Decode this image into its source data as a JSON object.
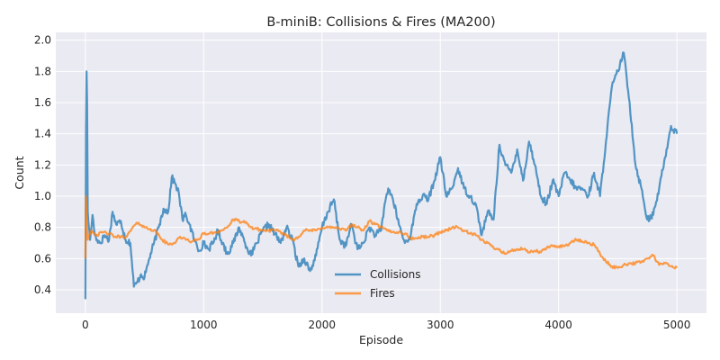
{
  "chart_data": {
    "type": "line",
    "title": "B-miniB: Collisions & Fires (MA200)",
    "xlabel": "Episode",
    "ylabel": "Count",
    "xlim": [
      -250,
      5250
    ],
    "ylim": [
      0.25,
      2.05
    ],
    "xticks": [
      0,
      1000,
      2000,
      3000,
      4000,
      5000
    ],
    "yticks": [
      0.4,
      0.6,
      0.8,
      1.0,
      1.2,
      1.4,
      1.6,
      1.8,
      2.0
    ],
    "ytick_labels": [
      "0.4",
      "0.6",
      "0.8",
      "1.0",
      "1.2",
      "1.4",
      "1.6",
      "1.8",
      "2.0"
    ],
    "grid": true,
    "legend_position": "lower-center",
    "series": [
      {
        "name": "Collisions",
        "color": "#1f77b4",
        "x": [
          0,
          5,
          10,
          15,
          20,
          30,
          40,
          60,
          80,
          100,
          130,
          160,
          200,
          230,
          260,
          300,
          340,
          380,
          410,
          440,
          470,
          500,
          540,
          580,
          620,
          660,
          700,
          730,
          760,
          790,
          820,
          850,
          880,
          920,
          960,
          1000,
          1040,
          1080,
          1120,
          1160,
          1200,
          1250,
          1300,
          1350,
          1400,
          1450,
          1500,
          1550,
          1600,
          1650,
          1700,
          1750,
          1800,
          1850,
          1900,
          1950,
          2000,
          2050,
          2100,
          2150,
          2200,
          2250,
          2300,
          2350,
          2400,
          2450,
          2500,
          2530,
          2560,
          2600,
          2650,
          2700,
          2750,
          2800,
          2850,
          2900,
          2950,
          3000,
          3050,
          3100,
          3150,
          3200,
          3250,
          3300,
          3350,
          3400,
          3450,
          3500,
          3550,
          3600,
          3650,
          3700,
          3750,
          3800,
          3850,
          3900,
          3950,
          4000,
          4050,
          4100,
          4150,
          4200,
          4250,
          4300,
          4350,
          4400,
          4450,
          4500,
          4550,
          4600,
          4650,
          4700,
          4750,
          4800,
          4850,
          4900,
          4950,
          5000
        ],
        "values": [
          0.34,
          1.4,
          1.8,
          1.6,
          0.9,
          0.8,
          0.72,
          0.88,
          0.75,
          0.72,
          0.7,
          0.75,
          0.72,
          0.9,
          0.82,
          0.84,
          0.72,
          0.7,
          0.42,
          0.45,
          0.5,
          0.48,
          0.6,
          0.7,
          0.8,
          0.92,
          0.9,
          1.12,
          1.08,
          1.02,
          0.85,
          0.88,
          0.82,
          0.72,
          0.65,
          0.7,
          0.66,
          0.7,
          0.78,
          0.7,
          0.63,
          0.7,
          0.8,
          0.7,
          0.62,
          0.7,
          0.78,
          0.82,
          0.76,
          0.7,
          0.8,
          0.72,
          0.55,
          0.6,
          0.52,
          0.62,
          0.8,
          0.9,
          0.98,
          0.72,
          0.68,
          0.82,
          0.66,
          0.7,
          0.8,
          0.75,
          0.78,
          0.95,
          1.05,
          0.98,
          0.82,
          0.7,
          0.75,
          0.95,
          1.0,
          0.98,
          1.1,
          1.25,
          1.0,
          1.05,
          1.18,
          1.05,
          1.0,
          0.95,
          0.75,
          0.9,
          0.85,
          1.33,
          1.2,
          1.15,
          1.3,
          1.1,
          1.35,
          1.2,
          1.0,
          0.95,
          1.1,
          1.0,
          1.15,
          1.1,
          1.05,
          1.05,
          1.0,
          1.15,
          1.0,
          1.35,
          1.7,
          1.8,
          1.92,
          1.6,
          1.2,
          1.05,
          0.85,
          0.88,
          1.05,
          1.25,
          1.45,
          1.4
        ]
      },
      {
        "name": "Fires",
        "color": "#ff7f0e",
        "x": [
          0,
          5,
          10,
          15,
          20,
          30,
          50,
          80,
          100,
          150,
          200,
          250,
          300,
          350,
          400,
          450,
          500,
          550,
          600,
          650,
          700,
          750,
          800,
          850,
          900,
          950,
          1000,
          1050,
          1100,
          1150,
          1200,
          1250,
          1300,
          1350,
          1400,
          1450,
          1500,
          1550,
          1600,
          1650,
          1700,
          1750,
          1800,
          1850,
          1900,
          1950,
          2000,
          2050,
          2100,
          2150,
          2200,
          2250,
          2300,
          2350,
          2400,
          2450,
          2500,
          2550,
          2600,
          2650,
          2700,
          2750,
          2800,
          2850,
          2900,
          2950,
          3000,
          3050,
          3100,
          3150,
          3200,
          3250,
          3300,
          3350,
          3400,
          3450,
          3500,
          3550,
          3600,
          3650,
          3700,
          3750,
          3800,
          3850,
          3900,
          3950,
          4000,
          4050,
          4100,
          4150,
          4200,
          4250,
          4300,
          4350,
          4400,
          4450,
          4500,
          4550,
          4600,
          4650,
          4700,
          4750,
          4800,
          4850,
          4900,
          4950,
          5000
        ],
        "values": [
          0.6,
          1.0,
          0.9,
          0.8,
          0.72,
          0.75,
          0.78,
          0.76,
          0.75,
          0.77,
          0.76,
          0.74,
          0.74,
          0.74,
          0.8,
          0.83,
          0.8,
          0.79,
          0.77,
          0.72,
          0.69,
          0.7,
          0.74,
          0.72,
          0.71,
          0.72,
          0.76,
          0.76,
          0.77,
          0.78,
          0.8,
          0.85,
          0.84,
          0.83,
          0.8,
          0.79,
          0.78,
          0.78,
          0.78,
          0.77,
          0.75,
          0.72,
          0.74,
          0.78,
          0.78,
          0.78,
          0.8,
          0.8,
          0.8,
          0.79,
          0.78,
          0.82,
          0.8,
          0.78,
          0.84,
          0.82,
          0.8,
          0.78,
          0.77,
          0.77,
          0.76,
          0.73,
          0.73,
          0.74,
          0.74,
          0.75,
          0.77,
          0.78,
          0.8,
          0.8,
          0.78,
          0.76,
          0.75,
          0.72,
          0.7,
          0.67,
          0.66,
          0.63,
          0.65,
          0.66,
          0.66,
          0.64,
          0.65,
          0.64,
          0.67,
          0.68,
          0.68,
          0.68,
          0.7,
          0.72,
          0.71,
          0.7,
          0.69,
          0.63,
          0.58,
          0.55,
          0.54,
          0.56,
          0.57,
          0.57,
          0.58,
          0.6,
          0.62,
          0.56,
          0.57,
          0.55,
          0.54
        ]
      }
    ]
  }
}
